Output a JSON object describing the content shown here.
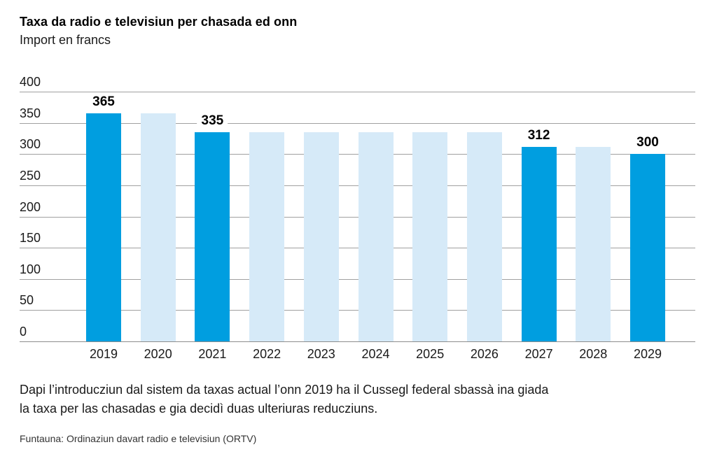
{
  "header": {
    "title": "Taxa da radio e televisiun per chasada ed onn",
    "subtitle": "Import en francs"
  },
  "chart_data": {
    "type": "bar",
    "title": "Taxa da radio e televisiun per chasada ed onn",
    "subtitle": "Import en francs",
    "xlabel": "",
    "ylabel": "Import en francs",
    "categories": [
      "2019",
      "2020",
      "2021",
      "2022",
      "2023",
      "2024",
      "2025",
      "2026",
      "2027",
      "2028",
      "2029"
    ],
    "values": [
      365,
      365,
      335,
      335,
      335,
      335,
      335,
      335,
      312,
      312,
      300
    ],
    "highlighted": [
      true,
      false,
      true,
      false,
      false,
      false,
      false,
      false,
      true,
      false,
      true
    ],
    "value_labels": [
      "365",
      "",
      "335",
      "",
      "",
      "",
      "",
      "",
      "312",
      "",
      "300"
    ],
    "yticks": [
      0,
      50,
      100,
      150,
      200,
      250,
      300,
      350,
      400
    ],
    "ylim": [
      0,
      400
    ],
    "grid": true,
    "legend": "none",
    "colors": {
      "highlight_bar": "#009ee0",
      "regular_bar": "#d6eaf8",
      "gridline": "#a0a0a0",
      "baseline": "#8c8c8c"
    }
  },
  "note": {
    "line1": "Dapi l’introducziun dal sistem da taxas actual l’onn 2019 ha il Cussegl federal sbassà ina giada",
    "line2": "la taxa per las chasadas e gia decidì duas ulteriuras reducziuns."
  },
  "source": "Funtauna: Ordinaziun davart radio e televisiun (ORTV)"
}
